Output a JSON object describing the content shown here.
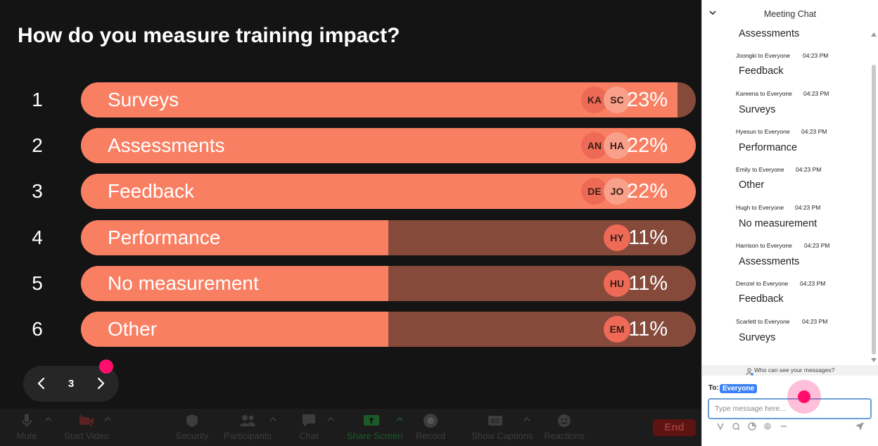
{
  "poll": {
    "question": "How do you measure training impact?",
    "rows": [
      {
        "number": "1",
        "label": "Surveys",
        "percent": "23%",
        "fill_fraction": 0.97,
        "avatars": [
          "KA",
          "SC"
        ]
      },
      {
        "number": "2",
        "label": "Assessments",
        "percent": "22%",
        "fill_fraction": 1.0,
        "avatars": [
          "AN",
          "HA"
        ]
      },
      {
        "number": "3",
        "label": "Feedback",
        "percent": "22%",
        "fill_fraction": 1.0,
        "avatars": [
          "DE",
          "JO"
        ]
      },
      {
        "number": "4",
        "label": "Performance",
        "percent": "11%",
        "fill_fraction": 0.5,
        "avatars": [
          "HY"
        ]
      },
      {
        "number": "5",
        "label": "No measurement",
        "percent": "11%",
        "fill_fraction": 0.5,
        "avatars": [
          "HU"
        ]
      },
      {
        "number": "6",
        "label": "Other",
        "percent": "11%",
        "fill_fraction": 0.5,
        "avatars": [
          "EM"
        ]
      }
    ],
    "colors": {
      "fill": "#f97f63",
      "track": "#864a3b",
      "background": "#141414"
    }
  },
  "pager": {
    "page": "3",
    "prev_icon": "chevron-left-icon",
    "next_icon": "chevron-right-icon"
  },
  "toolbar": {
    "buttons": [
      {
        "label": "Mute",
        "icon": "microphone-icon"
      },
      {
        "label": "Start Video",
        "icon": "video-off-icon"
      },
      {
        "label": "Security",
        "icon": "shield-icon"
      },
      {
        "label": "Participants",
        "icon": "participants-icon"
      },
      {
        "label": "Chat",
        "icon": "chat-bubble-icon"
      },
      {
        "label": "Share Screen",
        "icon": "share-screen-icon"
      },
      {
        "label": "Record",
        "icon": "record-icon"
      },
      {
        "label": "Show Captions",
        "icon": "cc-icon"
      },
      {
        "label": "Reactions",
        "icon": "emoji-icon"
      }
    ],
    "end_label": "End"
  },
  "chat": {
    "title": "Meeting Chat",
    "messages": [
      {
        "sender": "",
        "time": "",
        "text": "Assessments"
      },
      {
        "sender": "Joongki to Everyone",
        "time": "04:23 PM",
        "text": "Feedback"
      },
      {
        "sender": "Kareena to Everyone",
        "time": "04:23 PM",
        "text": "Surveys"
      },
      {
        "sender": "Hyesun to Everyone",
        "time": "04:23 PM",
        "text": "Performance"
      },
      {
        "sender": "Emily to Everyone",
        "time": "04:23 PM",
        "text": "Other"
      },
      {
        "sender": "Hugh to Everyone",
        "time": "04:23 PM",
        "text": "No measurement"
      },
      {
        "sender": "Harrison to Everyone",
        "time": "04:23 PM",
        "text": "Assessments"
      },
      {
        "sender": "Denzel to Everyone",
        "time": "04:23 PM",
        "text": "Feedback"
      },
      {
        "sender": "Scarlett to Everyone",
        "time": "04:23 PM",
        "text": "Surveys"
      }
    ],
    "who_can_see": "Who can see your messages?",
    "to_label": "To:",
    "to_recipient": "Everyone",
    "input_placeholder": "Type message here..."
  }
}
